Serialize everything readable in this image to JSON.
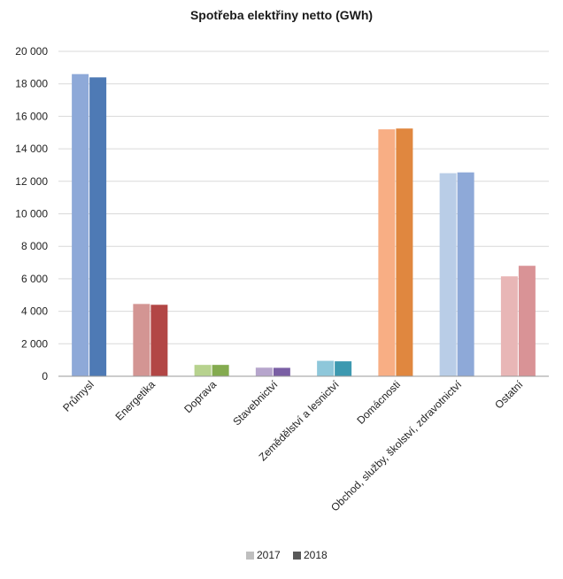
{
  "chart_data": {
    "type": "bar",
    "title": "Spotřeba elektřiny netto (GWh)",
    "xlabel": "",
    "ylabel": "",
    "ylim": [
      0,
      20000
    ],
    "ytick_values": [
      0,
      2000,
      4000,
      6000,
      8000,
      10000,
      12000,
      14000,
      16000,
      18000,
      20000
    ],
    "ytick_labels": [
      "0",
      "2 000",
      "4 000",
      "6 000",
      "8 000",
      "10 000",
      "12 000",
      "14 000",
      "16 000",
      "18 000",
      "20 000"
    ],
    "grid": true,
    "legend_position": "bottom",
    "categories": [
      "Průmysl",
      "Energetika",
      "Doprava",
      "Stavebnictví",
      "Zemědělství a lesnictví",
      "Domácnosti",
      "Obchod, služby, školství, zdravotnictví",
      "Ostatní"
    ],
    "series": [
      {
        "name": "2017",
        "values": [
          18600,
          4450,
          700,
          530,
          950,
          15200,
          12500,
          6150
        ]
      },
      {
        "name": "2018",
        "values": [
          18400,
          4400,
          700,
          520,
          920,
          15250,
          12550,
          6800
        ]
      }
    ],
    "colors_2017": [
      "#8ea9d8",
      "#d39593",
      "#b7d28e",
      "#b6a5cc",
      "#8ec7da",
      "#f8ae84",
      "#b9cde7",
      "#e8b6b6"
    ],
    "colors_2018": [
      "#4e7ab5",
      "#b24645",
      "#84ab4f",
      "#7a5fa4",
      "#3d99b0",
      "#e0873f",
      "#8ea9d8",
      "#d99396"
    ],
    "legend_swatch_colors": [
      "#bfbfbf",
      "#595959"
    ]
  }
}
